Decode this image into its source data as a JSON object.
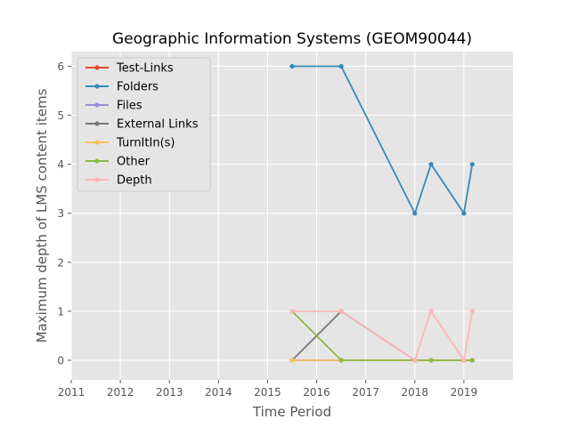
{
  "chart_data": {
    "type": "line",
    "title": "Geographic Information Systems (GEOM90044)",
    "xlabel": "Time Period",
    "ylabel": "Maximum depth of LMS content items",
    "xlim": [
      2011,
      2020
    ],
    "ylim": [
      -0.4,
      6.3
    ],
    "x_ticks": [
      "2011",
      "2012",
      "2013",
      "2014",
      "2015",
      "2016",
      "2017",
      "2018",
      "2019"
    ],
    "y_ticks": [
      "0",
      "1",
      "2",
      "3",
      "4",
      "5",
      "6"
    ],
    "grid": true,
    "legend_position": "top-left",
    "x": [
      2015.5,
      2016.5,
      2018.0,
      2018.33,
      2019.0,
      2019.17
    ],
    "series": [
      {
        "name": "Test-Links",
        "color": "#E24A33",
        "values": [
          0,
          0,
          0,
          0,
          0,
          0
        ]
      },
      {
        "name": "Folders",
        "color": "#348ABD",
        "values": [
          6,
          6,
          3,
          4,
          3,
          4
        ]
      },
      {
        "name": "Files",
        "color": "#988ED5",
        "values": [
          0,
          0,
          0,
          0,
          0,
          0
        ]
      },
      {
        "name": "External Links",
        "color": "#777777",
        "values": [
          0,
          1,
          0,
          0,
          0,
          0
        ]
      },
      {
        "name": "TurnItIn(s)",
        "color": "#FBC15E",
        "values": [
          0,
          0,
          0,
          0,
          0,
          0
        ]
      },
      {
        "name": "Other",
        "color": "#8EBA42",
        "values": [
          1,
          0,
          0,
          0,
          0,
          0
        ]
      },
      {
        "name": "Depth",
        "color": "#FFB5B8",
        "values": [
          1,
          1,
          0,
          1,
          0,
          1
        ]
      }
    ]
  }
}
